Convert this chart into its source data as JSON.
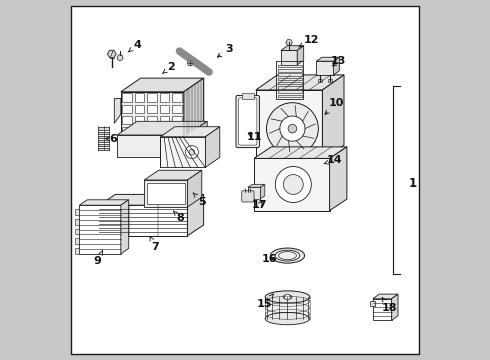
{
  "bg_color": "#c8c8c8",
  "border_fill": "#f2f2f2",
  "line_color": "#1a1a1a",
  "text_color": "#111111",
  "fig_w": 4.9,
  "fig_h": 3.6,
  "dpi": 100,
  "border": [
    0.015,
    0.015,
    0.97,
    0.97
  ],
  "labels": {
    "1": {
      "lpos": [
        0.955,
        0.49
      ],
      "tpos": [
        0.915,
        0.49
      ],
      "arrow": false
    },
    "2": {
      "lpos": [
        0.295,
        0.815
      ],
      "tpos": [
        0.27,
        0.795
      ],
      "arrow": true
    },
    "3": {
      "lpos": [
        0.455,
        0.865
      ],
      "tpos": [
        0.415,
        0.835
      ],
      "arrow": true
    },
    "4": {
      "lpos": [
        0.2,
        0.875
      ],
      "tpos": [
        0.175,
        0.855
      ],
      "arrow": true
    },
    "5": {
      "lpos": [
        0.38,
        0.44
      ],
      "tpos": [
        0.355,
        0.465
      ],
      "arrow": true
    },
    "6": {
      "lpos": [
        0.135,
        0.615
      ],
      "tpos": [
        0.11,
        0.615
      ],
      "arrow": true
    },
    "7": {
      "lpos": [
        0.25,
        0.315
      ],
      "tpos": [
        0.235,
        0.345
      ],
      "arrow": true
    },
    "8": {
      "lpos": [
        0.32,
        0.395
      ],
      "tpos": [
        0.3,
        0.415
      ],
      "arrow": true
    },
    "9": {
      "lpos": [
        0.09,
        0.275
      ],
      "tpos": [
        0.105,
        0.305
      ],
      "arrow": true
    },
    "10": {
      "lpos": [
        0.755,
        0.715
      ],
      "tpos": [
        0.715,
        0.675
      ],
      "arrow": true
    },
    "11": {
      "lpos": [
        0.525,
        0.62
      ],
      "tpos": [
        0.5,
        0.635
      ],
      "arrow": true
    },
    "12": {
      "lpos": [
        0.685,
        0.89
      ],
      "tpos": [
        0.642,
        0.865
      ],
      "arrow": true
    },
    "13": {
      "lpos": [
        0.76,
        0.83
      ],
      "tpos": [
        0.735,
        0.81
      ],
      "arrow": true
    },
    "14": {
      "lpos": [
        0.75,
        0.555
      ],
      "tpos": [
        0.718,
        0.545
      ],
      "arrow": true
    },
    "15": {
      "lpos": [
        0.555,
        0.155
      ],
      "tpos": [
        0.58,
        0.185
      ],
      "arrow": true
    },
    "16": {
      "lpos": [
        0.568,
        0.28
      ],
      "tpos": [
        0.592,
        0.285
      ],
      "arrow": true
    },
    "17": {
      "lpos": [
        0.54,
        0.43
      ],
      "tpos": [
        0.554,
        0.45
      ],
      "arrow": true
    },
    "18": {
      "lpos": [
        0.9,
        0.145
      ],
      "tpos": [
        0.88,
        0.175
      ],
      "arrow": true
    }
  }
}
